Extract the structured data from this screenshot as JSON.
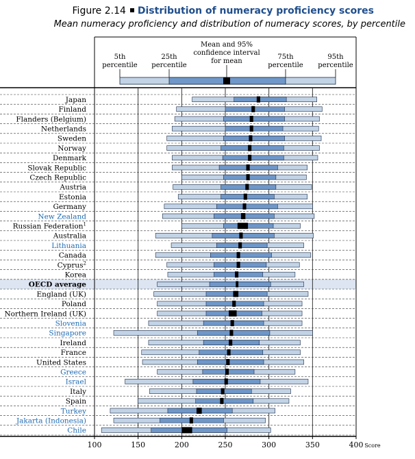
{
  "figure": {
    "number": "Figure 2.14",
    "title": "Distribution of numeracy proficiency scores",
    "subtitle": "Mean numeracy proficiency and distribution of numeracy scores, by percentile"
  },
  "legend": {
    "p5": [
      "5th",
      "percentile"
    ],
    "p25": [
      "25th",
      "percentile"
    ],
    "mean": [
      "Mean and 95%",
      "confidence interval",
      "for mean"
    ],
    "p75": [
      "75th",
      "percentile"
    ],
    "p95": [
      "95th",
      "percentile"
    ]
  },
  "colors": {
    "outer_box": "#c2d3e6",
    "inner_box": "#6f97c8",
    "box_stroke": "#1a2a44",
    "mean_marker": "#000000",
    "highlight_row": "#dde5f2",
    "blue_label": "#1f6bb3",
    "black_label": "#000000"
  },
  "chart_data": {
    "type": "box-percentile",
    "xlabel": "Score",
    "xlim": [
      100,
      400
    ],
    "xticks": [
      100,
      150,
      200,
      250,
      300,
      350,
      400
    ],
    "grid": "vertical lines at ticks, dashed row separators",
    "series_fields": [
      "p5",
      "p25",
      "mean_low",
      "mean_high",
      "p75",
      "p95"
    ],
    "rows": [
      {
        "label": "Japan",
        "blue": false,
        "p5": 212,
        "p25": 260,
        "mean_low": 286,
        "mean_high": 290,
        "p75": 320,
        "p95": 355
      },
      {
        "label": "Finland",
        "blue": false,
        "p5": 194,
        "p25": 250,
        "mean_low": 280,
        "mean_high": 284,
        "p75": 318,
        "p95": 361
      },
      {
        "label": "Flanders (Belgium)",
        "blue": false,
        "p5": 192,
        "p25": 248,
        "mean_low": 278,
        "mean_high": 282,
        "p75": 318,
        "p95": 358
      },
      {
        "label": "Netherlands",
        "blue": false,
        "p5": 189,
        "p25": 250,
        "mean_low": 278,
        "mean_high": 282,
        "p75": 316,
        "p95": 357
      },
      {
        "label": "Sweden",
        "blue": false,
        "p5": 183,
        "p25": 248,
        "mean_low": 277,
        "mean_high": 281,
        "p75": 318,
        "p95": 360
      },
      {
        "label": "Norway",
        "blue": false,
        "p5": 183,
        "p25": 245,
        "mean_low": 276,
        "mean_high": 280,
        "p75": 317,
        "p95": 358
      },
      {
        "label": "Denmark",
        "blue": false,
        "p5": 189,
        "p25": 247,
        "mean_low": 276,
        "mean_high": 280,
        "p75": 317,
        "p95": 356
      },
      {
        "label": "Slovak Republic",
        "blue": false,
        "p5": 189,
        "p25": 243,
        "mean_low": 274,
        "mean_high": 278,
        "p75": 310,
        "p95": 344
      },
      {
        "label": "Czech Republic",
        "blue": false,
        "p5": 200,
        "p25": 248,
        "mean_low": 274,
        "mean_high": 278,
        "p75": 308,
        "p95": 343
      },
      {
        "label": "Austria",
        "blue": false,
        "p5": 190,
        "p25": 245,
        "mean_low": 273,
        "mean_high": 277,
        "p75": 308,
        "p95": 349
      },
      {
        "label": "Estonia",
        "blue": false,
        "p5": 196,
        "p25": 245,
        "mean_low": 271,
        "mean_high": 275,
        "p75": 306,
        "p95": 344
      },
      {
        "label": "Germany",
        "blue": false,
        "p5": 180,
        "p25": 240,
        "mean_low": 270,
        "mean_high": 274,
        "p75": 310,
        "p95": 350
      },
      {
        "label": "New Zealand",
        "blue": true,
        "p5": 178,
        "p25": 237,
        "mean_low": 268,
        "mean_high": 273,
        "p75": 306,
        "p95": 352
      },
      {
        "label": "Russian Federation",
        "sup": "1",
        "blue": false,
        "p5": 200,
        "p25": 248,
        "mean_low": 264,
        "mean_high": 276,
        "p75": 305,
        "p95": 336
      },
      {
        "label": "Australia",
        "blue": false,
        "p5": 170,
        "p25": 235,
        "mean_low": 266,
        "mean_high": 270,
        "p75": 306,
        "p95": 351
      },
      {
        "label": "Lithuania",
        "blue": true,
        "p5": 188,
        "p25": 240,
        "mean_low": 265,
        "mean_high": 269,
        "p75": 298,
        "p95": 340
      },
      {
        "label": "Canada",
        "blue": false,
        "p5": 170,
        "p25": 233,
        "mean_low": 263,
        "mean_high": 267,
        "p75": 303,
        "p95": 348
      },
      {
        "label": "Cyprus",
        "sup": "2",
        "blue": false,
        "p5": 183,
        "p25": 237,
        "mean_low": 263,
        "mean_high": 267,
        "p75": 297,
        "p95": 335
      },
      {
        "label": "Korea",
        "blue": false,
        "p5": 184,
        "p25": 237,
        "mean_low": 261,
        "mean_high": 265,
        "p75": 293,
        "p95": 330
      },
      {
        "label": "OECD average",
        "blue": false,
        "bold": true,
        "highlight": true,
        "p5": 172,
        "p25": 232,
        "mean_low": 262,
        "mean_high": 265,
        "p75": 302,
        "p95": 340
      },
      {
        "label": "England (UK)",
        "blue": false,
        "p5": 168,
        "p25": 228,
        "mean_low": 259,
        "mean_high": 265,
        "p75": 298,
        "p95": 345
      },
      {
        "label": "Poland",
        "blue": false,
        "p5": 172,
        "p25": 228,
        "mean_low": 258,
        "mean_high": 262,
        "p75": 294,
        "p95": 338
      },
      {
        "label": "Northern Ireland (UK)",
        "blue": false,
        "p5": 172,
        "p25": 228,
        "mean_low": 254,
        "mean_high": 263,
        "p75": 292,
        "p95": 338
      },
      {
        "label": "Slovenia",
        "blue": true,
        "p5": 162,
        "p25": 225,
        "mean_low": 256,
        "mean_high": 260,
        "p75": 294,
        "p95": 338
      },
      {
        "label": "Singapore",
        "blue": true,
        "p5": 122,
        "p25": 218,
        "mean_low": 255,
        "mean_high": 259,
        "p75": 301,
        "p95": 350
      },
      {
        "label": "Ireland",
        "blue": false,
        "p5": 162,
        "p25": 225,
        "mean_low": 254,
        "mean_high": 258,
        "p75": 289,
        "p95": 336
      },
      {
        "label": "France",
        "blue": false,
        "p5": 154,
        "p25": 220,
        "mean_low": 252,
        "mean_high": 256,
        "p75": 293,
        "p95": 336
      },
      {
        "label": "United States",
        "blue": false,
        "p5": 155,
        "p25": 218,
        "mean_low": 251,
        "mean_high": 255,
        "p75": 294,
        "p95": 340
      },
      {
        "label": "Greece",
        "blue": true,
        "p5": 172,
        "p25": 224,
        "mean_low": 250,
        "mean_high": 254,
        "p75": 283,
        "p95": 330
      },
      {
        "label": "Israel",
        "blue": true,
        "p5": 135,
        "p25": 213,
        "mean_low": 249,
        "mean_high": 253,
        "p75": 290,
        "p95": 345
      },
      {
        "label": "Italy",
        "blue": false,
        "p5": 163,
        "p25": 217,
        "mean_low": 245,
        "mean_high": 249,
        "p75": 280,
        "p95": 325
      },
      {
        "label": "Spain",
        "blue": false,
        "p5": 150,
        "p25": 216,
        "mean_low": 244,
        "mean_high": 248,
        "p75": 282,
        "p95": 323
      },
      {
        "label": "Turkey",
        "blue": true,
        "p5": 118,
        "p25": 184,
        "mean_low": 217,
        "mean_high": 223,
        "p75": 258,
        "p95": 307
      },
      {
        "label": "Jakarta (Indonesia)",
        "blue": true,
        "p5": 122,
        "p25": 175,
        "mean_low": 209,
        "mean_high": 213,
        "p75": 248,
        "p95": 296
      },
      {
        "label": "Chile",
        "blue": true,
        "p5": 108,
        "p25": 165,
        "mean_low": 200,
        "mean_high": 212,
        "p75": 252,
        "p95": 302
      }
    ]
  }
}
